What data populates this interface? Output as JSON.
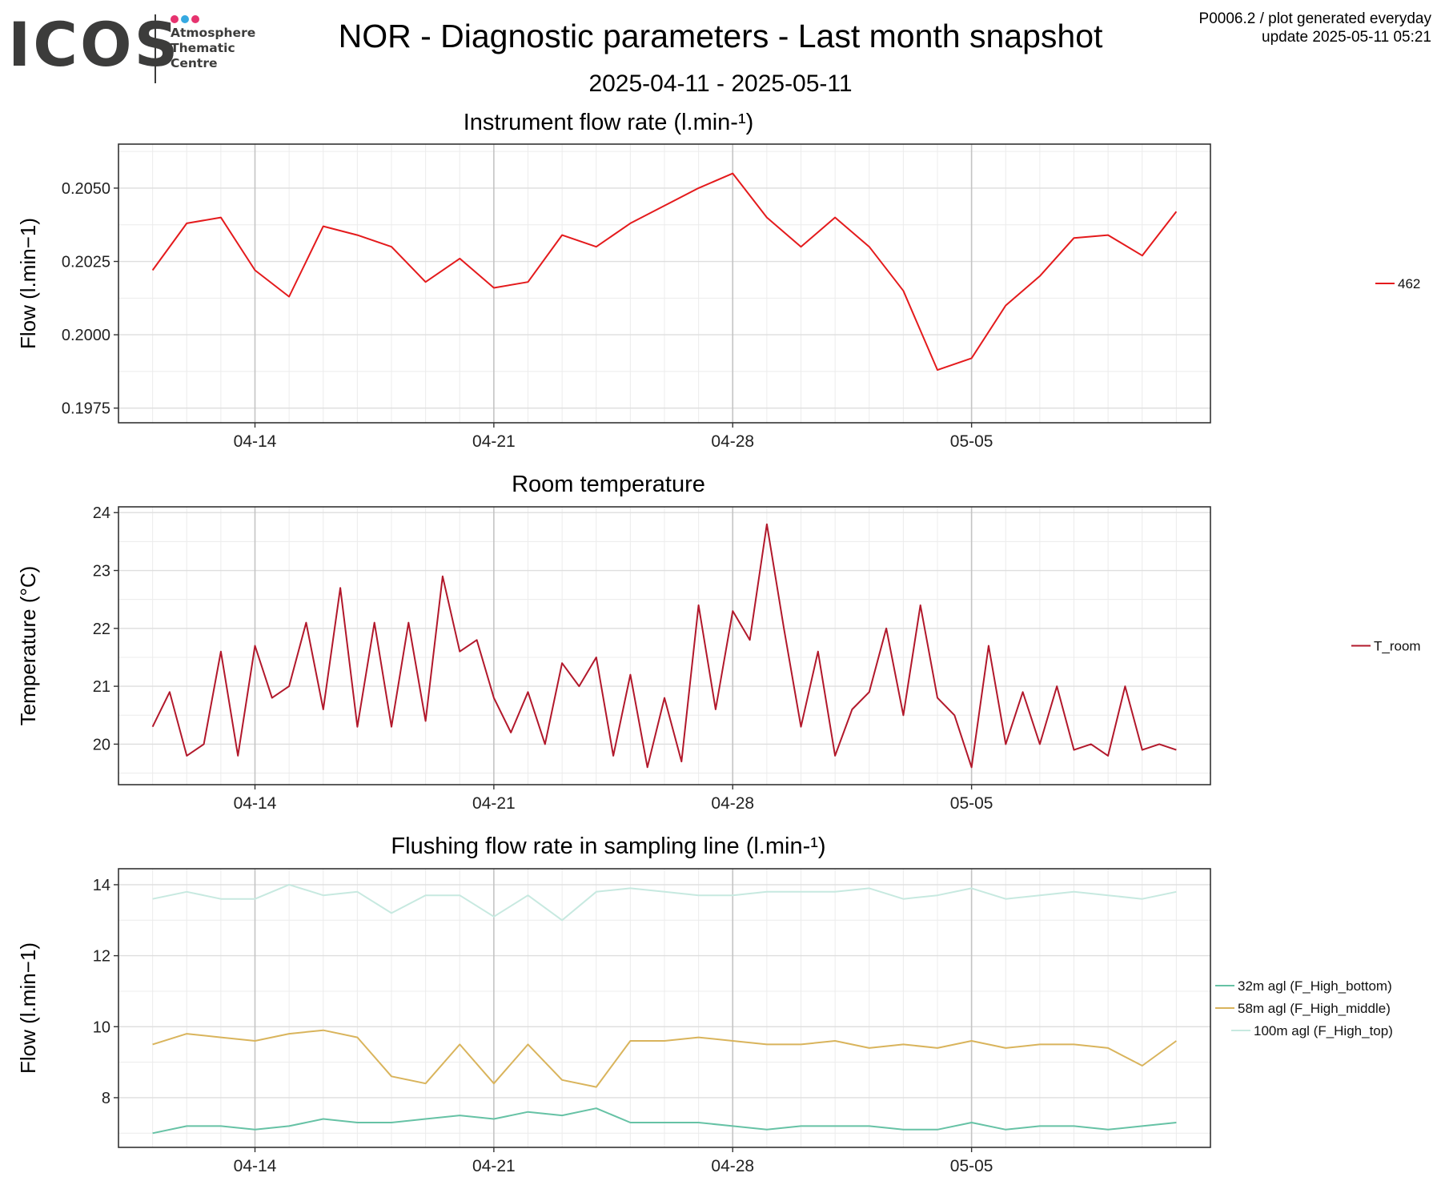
{
  "header": {
    "logo_text": "ICOS",
    "logo_subtitle": [
      "Atmosphere",
      "Thematic",
      "Centre"
    ],
    "logo_dot_colors": [
      "#e6336f",
      "#36a9e1",
      "#e6336f"
    ],
    "title": "NOR - Diagnostic parameters - Last month snapshot",
    "date_range": "2025-04-11 - 2025-05-11",
    "meta_line1": "P0006.2 / plot generated everyday",
    "meta_line2": "update  2025-05-11 05:21"
  },
  "chart_data": [
    {
      "type": "line",
      "title": "Instrument flow rate (l.min-¹)",
      "ylabel": "Flow (l.min−1)",
      "ylim": [
        0.197,
        0.2065
      ],
      "yticks": [
        0.1975,
        0.2,
        0.2025,
        0.205
      ],
      "ytick_labels": [
        "0.1975",
        "0.2000",
        "0.2025",
        "0.2050"
      ],
      "xlim": [
        "2025-04-10",
        "2025-05-12"
      ],
      "xticks": [
        "04-14",
        "04-21",
        "04-28",
        "05-05"
      ],
      "grid": true,
      "legend_position": "right",
      "series": [
        {
          "name": "462",
          "color": "#e41a1c",
          "x": [
            "2025-04-11",
            "2025-04-12",
            "2025-04-13",
            "2025-04-14",
            "2025-04-15",
            "2025-04-16",
            "2025-04-17",
            "2025-04-18",
            "2025-04-19",
            "2025-04-20",
            "2025-04-21",
            "2025-04-22",
            "2025-04-23",
            "2025-04-24",
            "2025-04-25",
            "2025-04-26",
            "2025-04-27",
            "2025-04-28",
            "2025-04-29",
            "2025-04-30",
            "2025-05-01",
            "2025-05-02",
            "2025-05-03",
            "2025-05-04",
            "2025-05-05",
            "2025-05-06",
            "2025-05-07",
            "2025-05-08",
            "2025-05-09",
            "2025-05-10",
            "2025-05-11"
          ],
          "y": [
            0.2022,
            0.2038,
            0.204,
            0.2022,
            0.2013,
            0.2037,
            0.2034,
            0.203,
            0.2018,
            0.2026,
            0.2016,
            0.2018,
            0.2034,
            0.203,
            0.2038,
            0.2044,
            0.205,
            0.2055,
            0.204,
            0.203,
            0.204,
            0.203,
            0.2015,
            0.1988,
            0.1992,
            0.201,
            0.202,
            0.2033,
            0.2034,
            0.2027,
            0.2042
          ]
        }
      ]
    },
    {
      "type": "line",
      "title": "Room temperature",
      "ylabel": "Temperature (°C)",
      "ylim": [
        19.3,
        24.1
      ],
      "yticks": [
        20,
        21,
        22,
        23,
        24
      ],
      "ytick_labels": [
        "20",
        "21",
        "22",
        "23",
        "24"
      ],
      "xlim": [
        "2025-04-10",
        "2025-05-12"
      ],
      "xticks": [
        "04-14",
        "04-21",
        "04-28",
        "05-05"
      ],
      "grid": true,
      "legend_position": "right",
      "series": [
        {
          "name": "T_room",
          "color": "#b2182b",
          "x": [
            "2025-04-11",
            "2025-04-11.5",
            "2025-04-12",
            "2025-04-12.5",
            "2025-04-13",
            "2025-04-13.5",
            "2025-04-14",
            "2025-04-14.5",
            "2025-04-15",
            "2025-04-15.5",
            "2025-04-16",
            "2025-04-16.5",
            "2025-04-17",
            "2025-04-17.5",
            "2025-04-18",
            "2025-04-18.5",
            "2025-04-19",
            "2025-04-19.5",
            "2025-04-20",
            "2025-04-20.5",
            "2025-04-21",
            "2025-04-21.5",
            "2025-04-22",
            "2025-04-22.5",
            "2025-04-23",
            "2025-04-23.5",
            "2025-04-24",
            "2025-04-24.5",
            "2025-04-25",
            "2025-04-25.5",
            "2025-04-26",
            "2025-04-26.5",
            "2025-04-27",
            "2025-04-27.5",
            "2025-04-28",
            "2025-04-28.5",
            "2025-04-29",
            "2025-04-29.5",
            "2025-04-30",
            "2025-04-30.5",
            "2025-05-01",
            "2025-05-01.5",
            "2025-05-02",
            "2025-05-02.5",
            "2025-05-03",
            "2025-05-03.5",
            "2025-05-04",
            "2025-05-04.5",
            "2025-05-05",
            "2025-05-05.5",
            "2025-05-06",
            "2025-05-06.5",
            "2025-05-07",
            "2025-05-07.5",
            "2025-05-08",
            "2025-05-08.5",
            "2025-05-09",
            "2025-05-09.5",
            "2025-05-10",
            "2025-05-10.5",
            "2025-05-11"
          ],
          "y": [
            20.3,
            20.9,
            19.8,
            20.0,
            21.6,
            19.8,
            21.7,
            20.8,
            21.0,
            22.1,
            20.6,
            22.7,
            20.3,
            22.1,
            20.3,
            22.1,
            20.4,
            22.9,
            21.6,
            21.8,
            20.8,
            20.2,
            20.9,
            20.0,
            21.4,
            21.0,
            21.5,
            19.8,
            21.2,
            19.6,
            20.8,
            19.7,
            22.4,
            20.6,
            22.3,
            21.8,
            23.8,
            22.0,
            20.3,
            21.6,
            19.8,
            20.6,
            20.9,
            22.0,
            20.5,
            22.4,
            20.8,
            20.5,
            19.6,
            21.7,
            20.0,
            20.9,
            20.0,
            21.0,
            19.9,
            20.0,
            19.8,
            21.0,
            19.9,
            20.0,
            19.9
          ]
        }
      ]
    },
    {
      "type": "line",
      "title": "Flushing flow rate in sampling line (l.min-¹)",
      "ylabel": "Flow (l.min−1)",
      "ylim": [
        6.6,
        14.45
      ],
      "yticks": [
        8,
        10,
        12,
        14
      ],
      "ytick_labels": [
        "8",
        "10",
        "12",
        "14"
      ],
      "xlim": [
        "2025-04-10",
        "2025-05-12"
      ],
      "xticks": [
        "04-14",
        "04-21",
        "04-28",
        "05-05"
      ],
      "grid": true,
      "legend_position": "right",
      "series": [
        {
          "name": "32m agl (F_High_bottom)",
          "color": "#66c2a5",
          "x": [
            "2025-04-11",
            "2025-04-12",
            "2025-04-13",
            "2025-04-14",
            "2025-04-15",
            "2025-04-16",
            "2025-04-17",
            "2025-04-18",
            "2025-04-19",
            "2025-04-20",
            "2025-04-21",
            "2025-04-22",
            "2025-04-23",
            "2025-04-24",
            "2025-04-25",
            "2025-04-26",
            "2025-04-27",
            "2025-04-28",
            "2025-04-29",
            "2025-04-30",
            "2025-05-01",
            "2025-05-02",
            "2025-05-03",
            "2025-05-04",
            "2025-05-05",
            "2025-05-06",
            "2025-05-07",
            "2025-05-08",
            "2025-05-09",
            "2025-05-10",
            "2025-05-11"
          ],
          "y": [
            7.0,
            7.2,
            7.2,
            7.1,
            7.2,
            7.4,
            7.3,
            7.3,
            7.4,
            7.5,
            7.4,
            7.6,
            7.5,
            7.7,
            7.3,
            7.3,
            7.3,
            7.2,
            7.1,
            7.2,
            7.2,
            7.2,
            7.1,
            7.1,
            7.3,
            7.1,
            7.2,
            7.2,
            7.1,
            7.2,
            7.3
          ]
        },
        {
          "name": "58m agl (F_High_middle)",
          "color": "#d9b45c",
          "x": [
            "2025-04-11",
            "2025-04-12",
            "2025-04-13",
            "2025-04-14",
            "2025-04-15",
            "2025-04-16",
            "2025-04-17",
            "2025-04-18",
            "2025-04-19",
            "2025-04-20",
            "2025-04-21",
            "2025-04-22",
            "2025-04-23",
            "2025-04-24",
            "2025-04-25",
            "2025-04-26",
            "2025-04-27",
            "2025-04-28",
            "2025-04-29",
            "2025-04-30",
            "2025-05-01",
            "2025-05-02",
            "2025-05-03",
            "2025-05-04",
            "2025-05-05",
            "2025-05-06",
            "2025-05-07",
            "2025-05-08",
            "2025-05-09",
            "2025-05-10",
            "2025-05-11"
          ],
          "y": [
            9.5,
            9.8,
            9.7,
            9.6,
            9.8,
            9.9,
            9.7,
            8.6,
            8.4,
            9.5,
            8.4,
            9.5,
            8.5,
            8.3,
            9.6,
            9.6,
            9.7,
            9.6,
            9.5,
            9.5,
            9.6,
            9.4,
            9.5,
            9.4,
            9.6,
            9.4,
            9.5,
            9.5,
            9.4,
            8.9,
            9.6
          ]
        },
        {
          "name": "100m agl (F_High_top)",
          "color": "#c7e9e0",
          "x": [
            "2025-04-11",
            "2025-04-12",
            "2025-04-13",
            "2025-04-14",
            "2025-04-15",
            "2025-04-16",
            "2025-04-17",
            "2025-04-18",
            "2025-04-19",
            "2025-04-20",
            "2025-04-21",
            "2025-04-22",
            "2025-04-23",
            "2025-04-24",
            "2025-04-25",
            "2025-04-26",
            "2025-04-27",
            "2025-04-28",
            "2025-04-29",
            "2025-04-30",
            "2025-05-01",
            "2025-05-02",
            "2025-05-03",
            "2025-05-04",
            "2025-05-05",
            "2025-05-06",
            "2025-05-07",
            "2025-05-08",
            "2025-05-09",
            "2025-05-10",
            "2025-05-11"
          ],
          "y": [
            13.6,
            13.8,
            13.6,
            13.6,
            14.0,
            13.7,
            13.8,
            13.2,
            13.7,
            13.7,
            13.1,
            13.7,
            13.0,
            13.8,
            13.9,
            13.8,
            13.7,
            13.7,
            13.8,
            13.8,
            13.8,
            13.9,
            13.6,
            13.7,
            13.9,
            13.6,
            13.7,
            13.8,
            13.7,
            13.6,
            13.8
          ]
        }
      ]
    }
  ]
}
